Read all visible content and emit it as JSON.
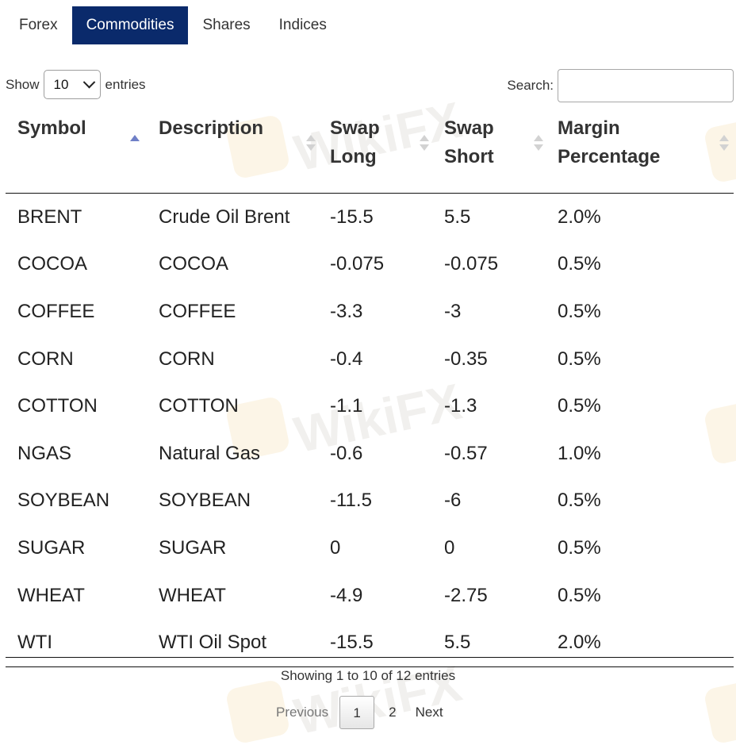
{
  "tabs": [
    {
      "label": "Forex",
      "active": false
    },
    {
      "label": "Commodities",
      "active": true
    },
    {
      "label": "Shares",
      "active": false
    },
    {
      "label": "Indices",
      "active": false
    }
  ],
  "length": {
    "show": "Show",
    "value": "10",
    "entries": "entries"
  },
  "search": {
    "label": "Search:",
    "value": ""
  },
  "table": {
    "headers": [
      {
        "label": "Symbol",
        "line2": "",
        "sort": "asc"
      },
      {
        "label": "Description",
        "line2": "",
        "sort": "both"
      },
      {
        "label": "Swap",
        "line2": "Long",
        "sort": "both"
      },
      {
        "label": "Swap",
        "line2": "Short",
        "sort": "both"
      },
      {
        "label": "Margin",
        "line2": "Percentage",
        "sort": "both"
      }
    ],
    "rows": [
      [
        "BRENT",
        "Crude Oil Brent",
        "-15.5",
        "5.5",
        "2.0%"
      ],
      [
        "COCOA",
        "COCOA",
        "-0.075",
        "-0.075",
        "0.5%"
      ],
      [
        "COFFEE",
        "COFFEE",
        "-3.3",
        "-3",
        "0.5%"
      ],
      [
        "CORN",
        "CORN",
        "-0.4",
        "-0.35",
        "0.5%"
      ],
      [
        "COTTON",
        "COTTON",
        "-1.1",
        "-1.3",
        "0.5%"
      ],
      [
        "NGAS",
        "Natural Gas",
        "-0.6",
        "-0.57",
        "1.0%"
      ],
      [
        "SOYBEAN",
        "SOYBEAN",
        "-11.5",
        "-6",
        "0.5%"
      ],
      [
        "SUGAR",
        "SUGAR",
        "0",
        "0",
        "0.5%"
      ],
      [
        "WHEAT",
        "WHEAT",
        "-4.9",
        "-2.75",
        "0.5%"
      ],
      [
        "WTI",
        "WTI Oil Spot",
        "-15.5",
        "5.5",
        "2.0%"
      ]
    ]
  },
  "info": "Showing 1 to 10 of 12 entries",
  "pagination": {
    "previous": "Previous",
    "pages": [
      "1",
      "2"
    ],
    "current": "1",
    "next": "Next"
  },
  "watermark": "WikiFX",
  "colors": {
    "active_tab": "#0a2a6b",
    "sort_active": "#6f7fc7"
  }
}
